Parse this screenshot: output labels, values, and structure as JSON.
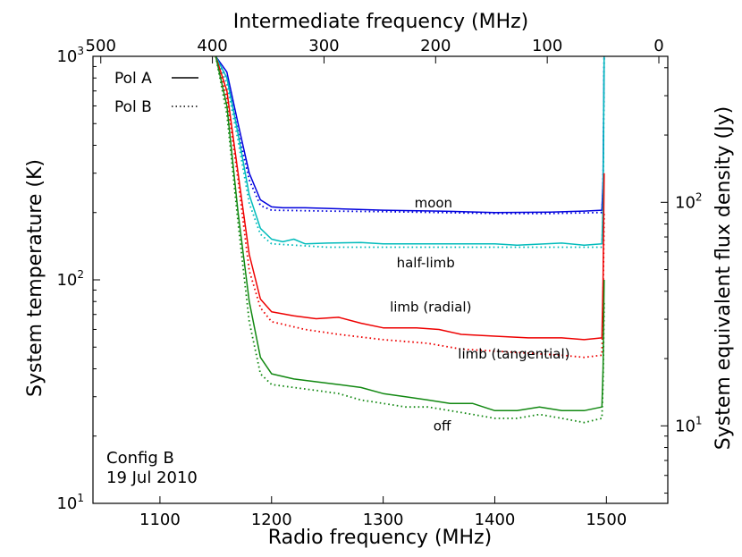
{
  "chart_data": {
    "type": "line",
    "x_scale": "linear",
    "y_scale": "log",
    "xlabel": "Radio frequency (MHz)",
    "ylabel": "System temperature (K)",
    "top_xlabel": "Intermediate frequency (MHz)",
    "right_ylabel": "System equivalent flux density (Jy)",
    "xlim": [
      1040,
      1555
    ],
    "ylim": [
      10,
      1000
    ],
    "right_ylim": [
      4.5,
      450
    ],
    "x_ticks": [
      {
        "value": 1100,
        "label": "1100"
      },
      {
        "value": 1200,
        "label": "1200"
      },
      {
        "value": 1300,
        "label": "1300"
      },
      {
        "value": 1400,
        "label": "1400"
      },
      {
        "value": 1500,
        "label": "1500"
      }
    ],
    "y_ticks": [
      {
        "value": 10,
        "base": "10",
        "exp": "1"
      },
      {
        "value": 100,
        "base": "10",
        "exp": "2"
      },
      {
        "value": 1000,
        "base": "10",
        "exp": "3"
      }
    ],
    "top_ticks": [
      {
        "value": 1047,
        "label": "500"
      },
      {
        "value": 1147,
        "label": "400"
      },
      {
        "value": 1247,
        "label": "300"
      },
      {
        "value": 1347,
        "label": "200"
      },
      {
        "value": 1447,
        "label": "100"
      },
      {
        "value": 1547,
        "label": "0"
      }
    ],
    "right_ticks": [
      {
        "value": 10,
        "base": "10",
        "exp": "1"
      },
      {
        "value": 100,
        "base": "10",
        "exp": "2"
      }
    ],
    "legend": {
      "position": "top-left",
      "entries": [
        {
          "label": "Pol A",
          "style": "solid"
        },
        {
          "label": "Pol B",
          "style": "dotted"
        }
      ]
    },
    "annotation": {
      "line1": "Config B",
      "line2": "19 Jul 2010",
      "position": "bottom-left"
    },
    "series": [
      {
        "name": "moon",
        "color": "#0000dd",
        "label": "moon",
        "label_at": [
          1328,
          211
        ],
        "polA": [
          [
            1150,
            1000
          ],
          [
            1160,
            850
          ],
          [
            1170,
            500
          ],
          [
            1180,
            300
          ],
          [
            1190,
            228
          ],
          [
            1200,
            212
          ],
          [
            1210,
            210
          ],
          [
            1230,
            210
          ],
          [
            1260,
            208
          ],
          [
            1300,
            205
          ],
          [
            1350,
            203
          ],
          [
            1400,
            200
          ],
          [
            1450,
            201
          ],
          [
            1480,
            203
          ],
          [
            1496,
            205
          ],
          [
            1497,
            280
          ],
          [
            1498,
            1000
          ]
        ],
        "polB": [
          [
            1150,
            1000
          ],
          [
            1160,
            800
          ],
          [
            1170,
            460
          ],
          [
            1180,
            280
          ],
          [
            1190,
            215
          ],
          [
            1200,
            205
          ],
          [
            1250,
            203
          ],
          [
            1300,
            202
          ],
          [
            1350,
            200
          ],
          [
            1400,
            198
          ],
          [
            1450,
            198
          ],
          [
            1496,
            200
          ],
          [
            1497,
            260
          ],
          [
            1498,
            1000
          ]
        ]
      },
      {
        "name": "half-limb",
        "color": "#00bbbb",
        "label": "half-limb",
        "label_at": [
          1312,
          114
        ],
        "polA": [
          [
            1150,
            1000
          ],
          [
            1160,
            800
          ],
          [
            1170,
            450
          ],
          [
            1180,
            240
          ],
          [
            1190,
            170
          ],
          [
            1200,
            152
          ],
          [
            1210,
            148
          ],
          [
            1220,
            152
          ],
          [
            1230,
            145
          ],
          [
            1250,
            146
          ],
          [
            1280,
            147
          ],
          [
            1300,
            145
          ],
          [
            1350,
            145
          ],
          [
            1400,
            145
          ],
          [
            1420,
            143
          ],
          [
            1460,
            146
          ],
          [
            1480,
            143
          ],
          [
            1496,
            145
          ],
          [
            1497,
            220
          ],
          [
            1498,
            1000
          ]
        ],
        "polB": [
          [
            1150,
            1000
          ],
          [
            1160,
            750
          ],
          [
            1170,
            420
          ],
          [
            1180,
            220
          ],
          [
            1190,
            160
          ],
          [
            1200,
            145
          ],
          [
            1250,
            140
          ],
          [
            1300,
            140
          ],
          [
            1350,
            140
          ],
          [
            1400,
            140
          ],
          [
            1450,
            140
          ],
          [
            1496,
            140
          ],
          [
            1497,
            210
          ],
          [
            1498,
            1000
          ]
        ]
      },
      {
        "name": "limb (radial)",
        "color": "#ee0000",
        "label": "limb (radial)",
        "label_at": [
          1306,
          72
        ],
        "polA": [
          [
            1150,
            1000
          ],
          [
            1160,
            700
          ],
          [
            1170,
            300
          ],
          [
            1180,
            130
          ],
          [
            1190,
            82
          ],
          [
            1200,
            72
          ],
          [
            1220,
            69
          ],
          [
            1240,
            67
          ],
          [
            1260,
            68
          ],
          [
            1280,
            64
          ],
          [
            1300,
            61
          ],
          [
            1330,
            61
          ],
          [
            1350,
            60
          ],
          [
            1370,
            57
          ],
          [
            1400,
            56
          ],
          [
            1430,
            55
          ],
          [
            1460,
            55
          ],
          [
            1480,
            54
          ],
          [
            1496,
            55
          ],
          [
            1497,
            100
          ],
          [
            1498,
            300
          ]
        ],
        "polB": [
          [
            1150,
            1000
          ],
          [
            1160,
            650
          ],
          [
            1170,
            280
          ],
          [
            1180,
            110
          ],
          [
            1190,
            75
          ],
          [
            1200,
            65
          ],
          [
            1230,
            60
          ],
          [
            1260,
            57
          ],
          [
            1300,
            54
          ],
          [
            1340,
            52
          ],
          [
            1370,
            49
          ],
          [
            1400,
            48
          ],
          [
            1430,
            47
          ],
          [
            1460,
            46
          ],
          [
            1480,
            45
          ],
          [
            1496,
            46
          ],
          [
            1497,
            80
          ],
          [
            1498,
            200
          ]
        ]
      },
      {
        "name": "off",
        "color": "#118811",
        "label": "off",
        "label_at": [
          1345,
          21.2
        ],
        "polA": [
          [
            1150,
            1000
          ],
          [
            1160,
            600
          ],
          [
            1170,
            200
          ],
          [
            1180,
            80
          ],
          [
            1190,
            45
          ],
          [
            1200,
            38
          ],
          [
            1220,
            36
          ],
          [
            1240,
            35
          ],
          [
            1260,
            34
          ],
          [
            1280,
            33
          ],
          [
            1300,
            31
          ],
          [
            1320,
            30
          ],
          [
            1340,
            29
          ],
          [
            1360,
            28
          ],
          [
            1380,
            28
          ],
          [
            1400,
            26
          ],
          [
            1420,
            26
          ],
          [
            1440,
            27
          ],
          [
            1460,
            26
          ],
          [
            1480,
            26
          ],
          [
            1496,
            27
          ],
          [
            1497,
            40
          ],
          [
            1498,
            100
          ]
        ],
        "polB": [
          [
            1150,
            1000
          ],
          [
            1160,
            550
          ],
          [
            1170,
            180
          ],
          [
            1180,
            65
          ],
          [
            1190,
            38
          ],
          [
            1200,
            34
          ],
          [
            1220,
            33
          ],
          [
            1240,
            32
          ],
          [
            1260,
            31
          ],
          [
            1280,
            29
          ],
          [
            1300,
            28
          ],
          [
            1320,
            27
          ],
          [
            1340,
            27
          ],
          [
            1360,
            26
          ],
          [
            1380,
            25
          ],
          [
            1400,
            24
          ],
          [
            1420,
            24
          ],
          [
            1440,
            25
          ],
          [
            1460,
            24
          ],
          [
            1480,
            23
          ],
          [
            1496,
            24
          ],
          [
            1497,
            35
          ],
          [
            1498,
            80
          ]
        ]
      },
      {
        "name": "limb (tangential)",
        "color": "#000000",
        "label": "limb (tangential)",
        "label_at": [
          1367,
          44.5
        ],
        "label_only": true
      }
    ]
  }
}
